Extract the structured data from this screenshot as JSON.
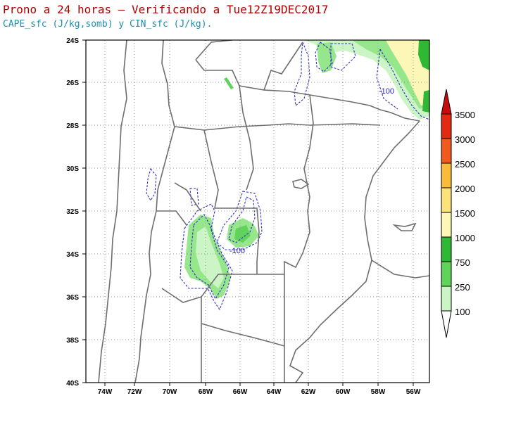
{
  "title": "Prono a 24 horas — Verificando a Tue12Z19DEC2017",
  "subtitle": "CAPE_sfc (J/kg,somb) y CIN_sfc (J/kg).",
  "map": {
    "lat_ticks": [
      "24S",
      "26S",
      "28S",
      "30S",
      "32S",
      "34S",
      "36S",
      "38S",
      "40S"
    ],
    "lon_ticks": [
      "74W",
      "72W",
      "70W",
      "68W",
      "66W",
      "64W",
      "62W",
      "60W",
      "58W",
      "56W"
    ],
    "contour_labels": [
      "-100",
      "-100"
    ]
  },
  "colorbar": {
    "labels": [
      "100",
      "250",
      "750",
      "1000",
      "1500",
      "2000",
      "2500",
      "3000",
      "3500"
    ],
    "colors": [
      "#ccf5c5",
      "#96e68c",
      "#5fd35a",
      "#2fb833",
      "#fdf7b7",
      "#fbe27b",
      "#f8bb3a",
      "#f7892a",
      "#f05a1c",
      "#e22912",
      "#c80a0a"
    ]
  }
}
